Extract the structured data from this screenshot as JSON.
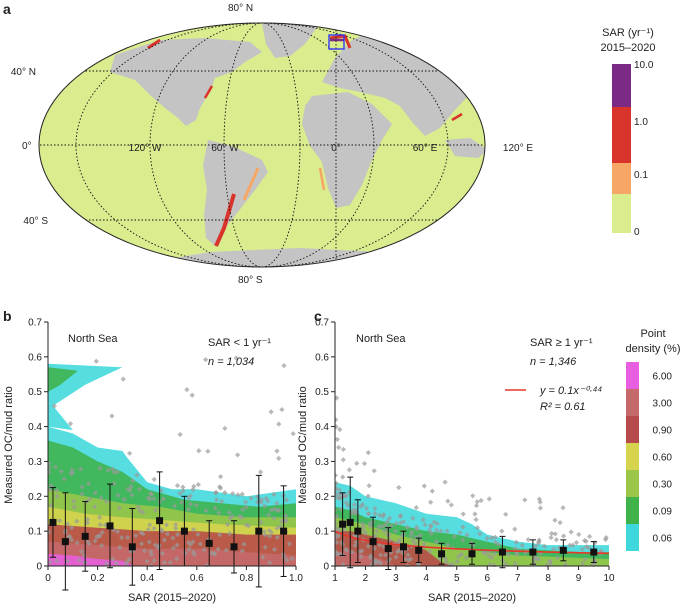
{
  "panels": {
    "a": {
      "label": "a"
    },
    "b": {
      "label": "b"
    },
    "c": {
      "label": "c"
    }
  },
  "map": {
    "lat_labels": [
      "80° N",
      "40° N",
      "0°",
      "40° S",
      "80° S"
    ],
    "lon_labels": [
      "120° W",
      "60° W",
      "0°",
      "60° E",
      "120° E"
    ],
    "legend": {
      "title_line1": "SAR (yr⁻¹)",
      "title_line2": "2015–2020",
      "levels": [
        "10.0",
        "1.0",
        "0.1",
        "0"
      ],
      "colors": [
        "#7b2a86",
        "#d9342b",
        "#f7a765",
        "#d9ec8e"
      ]
    },
    "colors": {
      "ocean": "#d9ec8e",
      "land": "#c4c4c4",
      "outline": "#222222",
      "highlight_box": "#2a2aff"
    }
  },
  "density_legend": {
    "title_line1": "Point",
    "title_line2": "density (%)",
    "levels": [
      "6.00",
      "3.00",
      "0.90",
      "0.60",
      "0.30",
      "0.09",
      "0.06"
    ],
    "colors": [
      "#e85ee0",
      "#c46a6a",
      "#b74a4a",
      "#d6d44c",
      "#9bc64a",
      "#3fb34a",
      "#3ed8dc"
    ]
  },
  "chart_data": [
    {
      "panel": "b",
      "type": "scatter",
      "region": "North Sea",
      "annotation_sar": "SAR < 1 yr⁻¹",
      "annotation_n": "n = 1,034",
      "xlabel": "SAR (2015–2020)",
      "ylabel": "Measured OC/mud ratio",
      "xlim": [
        0,
        1.0
      ],
      "ylim": [
        0,
        0.7
      ],
      "xticks": [
        "0",
        "0.2",
        "0.4",
        "0.6",
        "0.8",
        "1.0"
      ],
      "yticks": [
        "0",
        "0.1",
        "0.2",
        "0.3",
        "0.4",
        "0.5",
        "0.6",
        "0.7"
      ],
      "binned_means": {
        "x": [
          0.02,
          0.07,
          0.15,
          0.25,
          0.34,
          0.45,
          0.55,
          0.65,
          0.75,
          0.85,
          0.95
        ],
        "y": [
          0.125,
          0.07,
          0.085,
          0.115,
          0.055,
          0.13,
          0.1,
          0.065,
          0.055,
          0.1,
          0.1
        ],
        "err": [
          0.1,
          0.14,
          0.1,
          0.12,
          0.11,
          0.14,
          0.1,
          0.065,
          0.075,
          0.16,
          0.13
        ]
      }
    },
    {
      "panel": "c",
      "type": "scatter",
      "region": "North Sea",
      "annotation_sar": "SAR ≥ 1 yr⁻¹",
      "annotation_n": "n = 1,346",
      "fit_label": "y = 0.1x⁻⁰·⁴⁴",
      "fit_r2": "R² = 0.61",
      "fit_color": "#e8362b",
      "fit": {
        "a": 0.1,
        "b": -0.44
      },
      "xlabel": "SAR (2015–2020)",
      "ylabel": "Measured OC/mud ratio",
      "xlim": [
        1,
        10
      ],
      "ylim": [
        0,
        0.7
      ],
      "xticks": [
        "1",
        "2",
        "3",
        "4",
        "5",
        "6",
        "7",
        "8",
        "9",
        "10"
      ],
      "yticks": [
        "0",
        "0.1",
        "0.2",
        "0.3",
        "0.4",
        "0.5",
        "0.6",
        "0.7"
      ],
      "binned_means": {
        "x": [
          1.25,
          1.5,
          1.75,
          2.25,
          2.75,
          3.25,
          3.75,
          4.5,
          5.5,
          6.5,
          7.5,
          8.5,
          9.5
        ],
        "y": [
          0.12,
          0.125,
          0.1,
          0.07,
          0.05,
          0.055,
          0.045,
          0.035,
          0.035,
          0.04,
          0.04,
          0.045,
          0.04
        ],
        "err": [
          0.09,
          0.13,
          0.09,
          0.07,
          0.06,
          0.045,
          0.035,
          0.03,
          0.03,
          0.045,
          0.035,
          0.03,
          0.03
        ]
      }
    }
  ]
}
